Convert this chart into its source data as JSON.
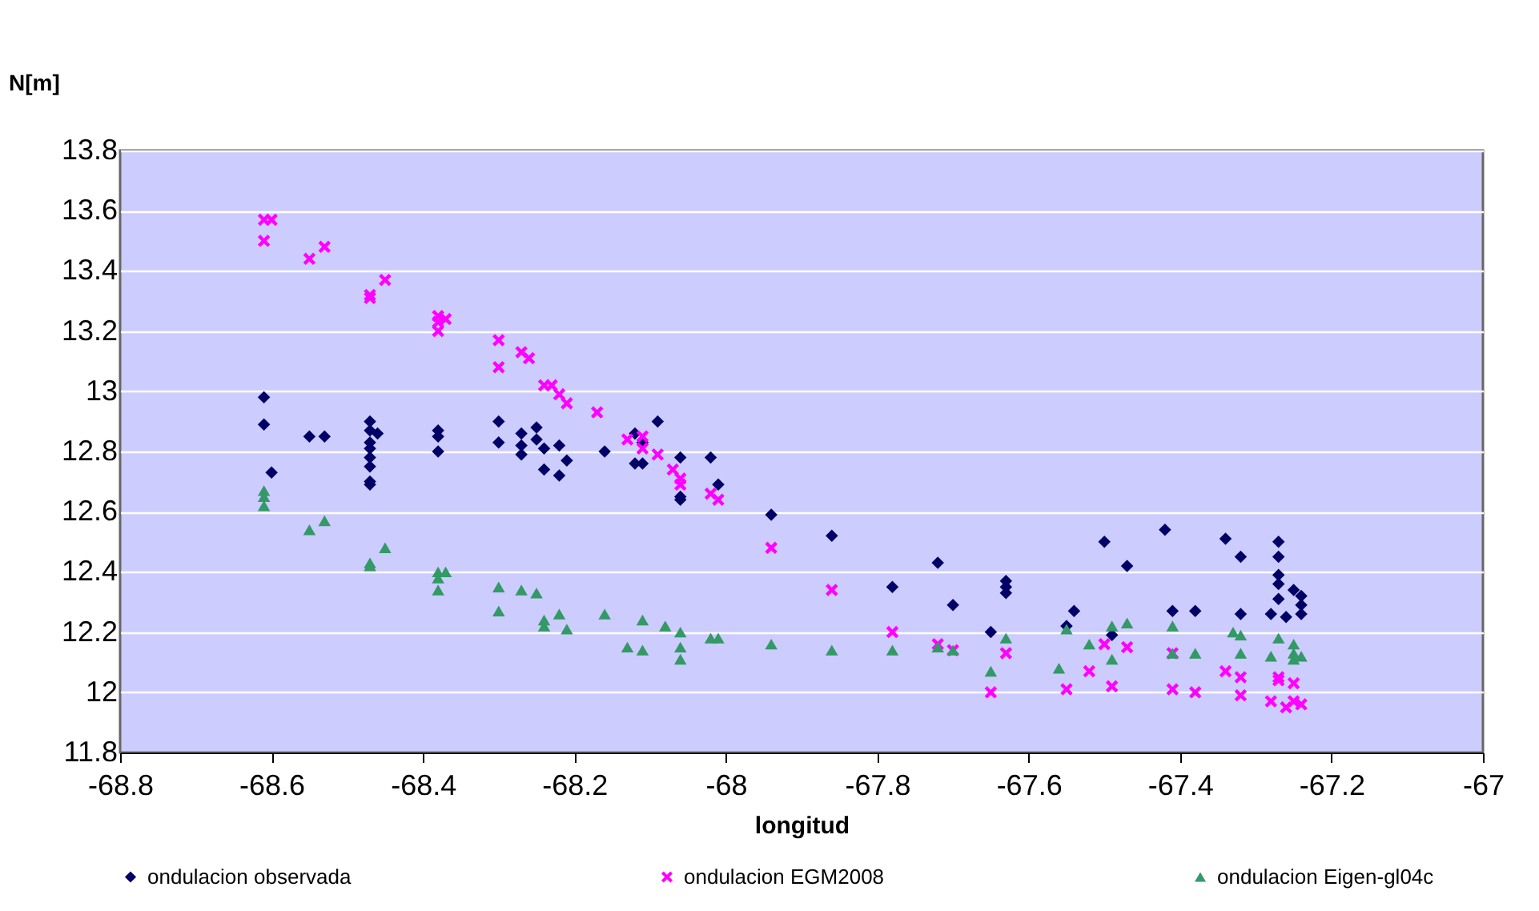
{
  "chart_data": {
    "type": "scatter",
    "xlabel": "longitud",
    "ylabel": "N[m]",
    "xlim": [
      -68.8,
      -67
    ],
    "xticks": [
      -68.8,
      -68.6,
      -68.4,
      -68.2,
      -68,
      -67.8,
      -67.6,
      -67.4,
      -67.2,
      -67
    ],
    "ylim": [
      11.8,
      13.8
    ],
    "yticks": [
      11.8,
      12,
      12.2,
      12.4,
      12.6,
      12.8,
      13,
      13.2,
      13.4,
      13.6,
      13.8
    ],
    "grid": "y",
    "legend": "bottom",
    "series": [
      {
        "name": "ondulacion observada",
        "color": "#000066",
        "marker": "diamond",
        "x": [
          -68.61,
          -68.61,
          -68.6,
          -68.55,
          -68.53,
          -68.47,
          -68.47,
          -68.47,
          -68.47,
          -68.47,
          -68.47,
          -68.47,
          -68.47,
          -68.46,
          -68.38,
          -68.38,
          -68.38,
          -68.3,
          -68.3,
          -68.27,
          -68.27,
          -68.27,
          -68.25,
          -68.25,
          -68.24,
          -68.24,
          -68.22,
          -68.22,
          -68.21,
          -68.16,
          -68.12,
          -68.12,
          -68.11,
          -68.11,
          -68.09,
          -68.06,
          -68.06,
          -68.06,
          -68.02,
          -68.01,
          -67.94,
          -67.86,
          -67.78,
          -67.72,
          -67.7,
          -67.65,
          -67.63,
          -67.63,
          -67.63,
          -67.55,
          -67.54,
          -67.5,
          -67.49,
          -67.47,
          -67.42,
          -67.41,
          -67.38,
          -67.34,
          -67.32,
          -67.32,
          -67.28,
          -67.27,
          -67.27,
          -67.27,
          -67.27,
          -67.27,
          -67.26,
          -67.25,
          -67.24,
          -67.24,
          -67.24
        ],
        "values": [
          12.98,
          12.89,
          12.73,
          12.85,
          12.85,
          12.9,
          12.87,
          12.83,
          12.81,
          12.78,
          12.75,
          12.7,
          12.69,
          12.86,
          12.87,
          12.85,
          12.8,
          12.9,
          12.83,
          12.86,
          12.82,
          12.79,
          12.88,
          12.84,
          12.74,
          12.81,
          12.82,
          12.72,
          12.77,
          12.8,
          12.76,
          12.86,
          12.76,
          12.83,
          12.9,
          12.78,
          12.65,
          12.64,
          12.78,
          12.69,
          12.59,
          12.52,
          12.35,
          12.43,
          12.29,
          12.2,
          12.37,
          12.35,
          12.33,
          12.22,
          12.27,
          12.5,
          12.19,
          12.42,
          12.54,
          12.27,
          12.27,
          12.51,
          12.45,
          12.26,
          12.26,
          12.5,
          12.45,
          12.39,
          12.36,
          12.31,
          12.25,
          12.34,
          12.32,
          12.29,
          12.26
        ]
      },
      {
        "name": "ondulacion EGM2008",
        "color": "#ff00ff",
        "marker": "cross",
        "x": [
          -68.61,
          -68.6,
          -68.61,
          -68.55,
          -68.53,
          -68.47,
          -68.47,
          -68.45,
          -68.38,
          -68.38,
          -68.38,
          -68.37,
          -68.3,
          -68.3,
          -68.27,
          -68.26,
          -68.24,
          -68.23,
          -68.22,
          -68.21,
          -68.17,
          -68.13,
          -68.11,
          -68.11,
          -68.09,
          -68.07,
          -68.06,
          -68.06,
          -68.02,
          -68.01,
          -67.94,
          -67.86,
          -67.78,
          -67.72,
          -67.7,
          -67.65,
          -67.63,
          -67.55,
          -67.52,
          -67.5,
          -67.49,
          -67.47,
          -67.41,
          -67.41,
          -67.38,
          -67.34,
          -67.32,
          -67.32,
          -67.28,
          -67.27,
          -67.27,
          -67.25,
          -67.26,
          -67.25,
          -67.24
        ],
        "values": [
          13.57,
          13.57,
          13.5,
          13.44,
          13.48,
          13.32,
          13.31,
          13.37,
          13.25,
          13.23,
          13.2,
          13.24,
          13.17,
          13.08,
          13.13,
          13.11,
          13.02,
          13.02,
          12.99,
          12.96,
          12.93,
          12.84,
          12.85,
          12.81,
          12.79,
          12.74,
          12.71,
          12.69,
          12.66,
          12.64,
          12.48,
          12.34,
          12.2,
          12.16,
          12.14,
          12.0,
          12.13,
          12.01,
          12.07,
          12.16,
          12.02,
          12.15,
          12.13,
          12.01,
          12.0,
          12.07,
          12.05,
          11.99,
          11.97,
          12.05,
          12.04,
          12.03,
          11.95,
          11.97,
          11.96
        ]
      },
      {
        "name": "ondulacion Eigen-gl04c",
        "color": "#339966",
        "marker": "triangle",
        "x": [
          -68.61,
          -68.61,
          -68.61,
          -68.55,
          -68.53,
          -68.47,
          -68.47,
          -68.45,
          -68.38,
          -68.38,
          -68.38,
          -68.37,
          -68.3,
          -68.3,
          -68.27,
          -68.25,
          -68.24,
          -68.24,
          -68.22,
          -68.21,
          -68.16,
          -68.13,
          -68.11,
          -68.11,
          -68.08,
          -68.06,
          -68.06,
          -68.06,
          -68.02,
          -68.01,
          -67.94,
          -67.86,
          -67.78,
          -67.72,
          -67.7,
          -67.65,
          -67.63,
          -67.56,
          -67.55,
          -67.52,
          -67.49,
          -67.47,
          -67.49,
          -67.41,
          -67.41,
          -67.38,
          -67.33,
          -67.32,
          -67.32,
          -67.28,
          -67.27,
          -67.25,
          -67.25,
          -67.25,
          -67.24
        ],
        "values": [
          12.67,
          12.65,
          12.62,
          12.54,
          12.57,
          12.43,
          12.42,
          12.48,
          12.4,
          12.38,
          12.34,
          12.4,
          12.35,
          12.27,
          12.34,
          12.33,
          12.24,
          12.22,
          12.26,
          12.21,
          12.26,
          12.15,
          12.14,
          12.24,
          12.22,
          12.2,
          12.15,
          12.11,
          12.18,
          12.18,
          12.16,
          12.14,
          12.14,
          12.15,
          12.14,
          12.07,
          12.18,
          12.08,
          12.21,
          12.16,
          12.22,
          12.23,
          12.11,
          12.22,
          12.13,
          12.13,
          12.2,
          12.19,
          12.13,
          12.12,
          12.18,
          12.13,
          12.16,
          12.11,
          12.12
        ]
      }
    ]
  }
}
